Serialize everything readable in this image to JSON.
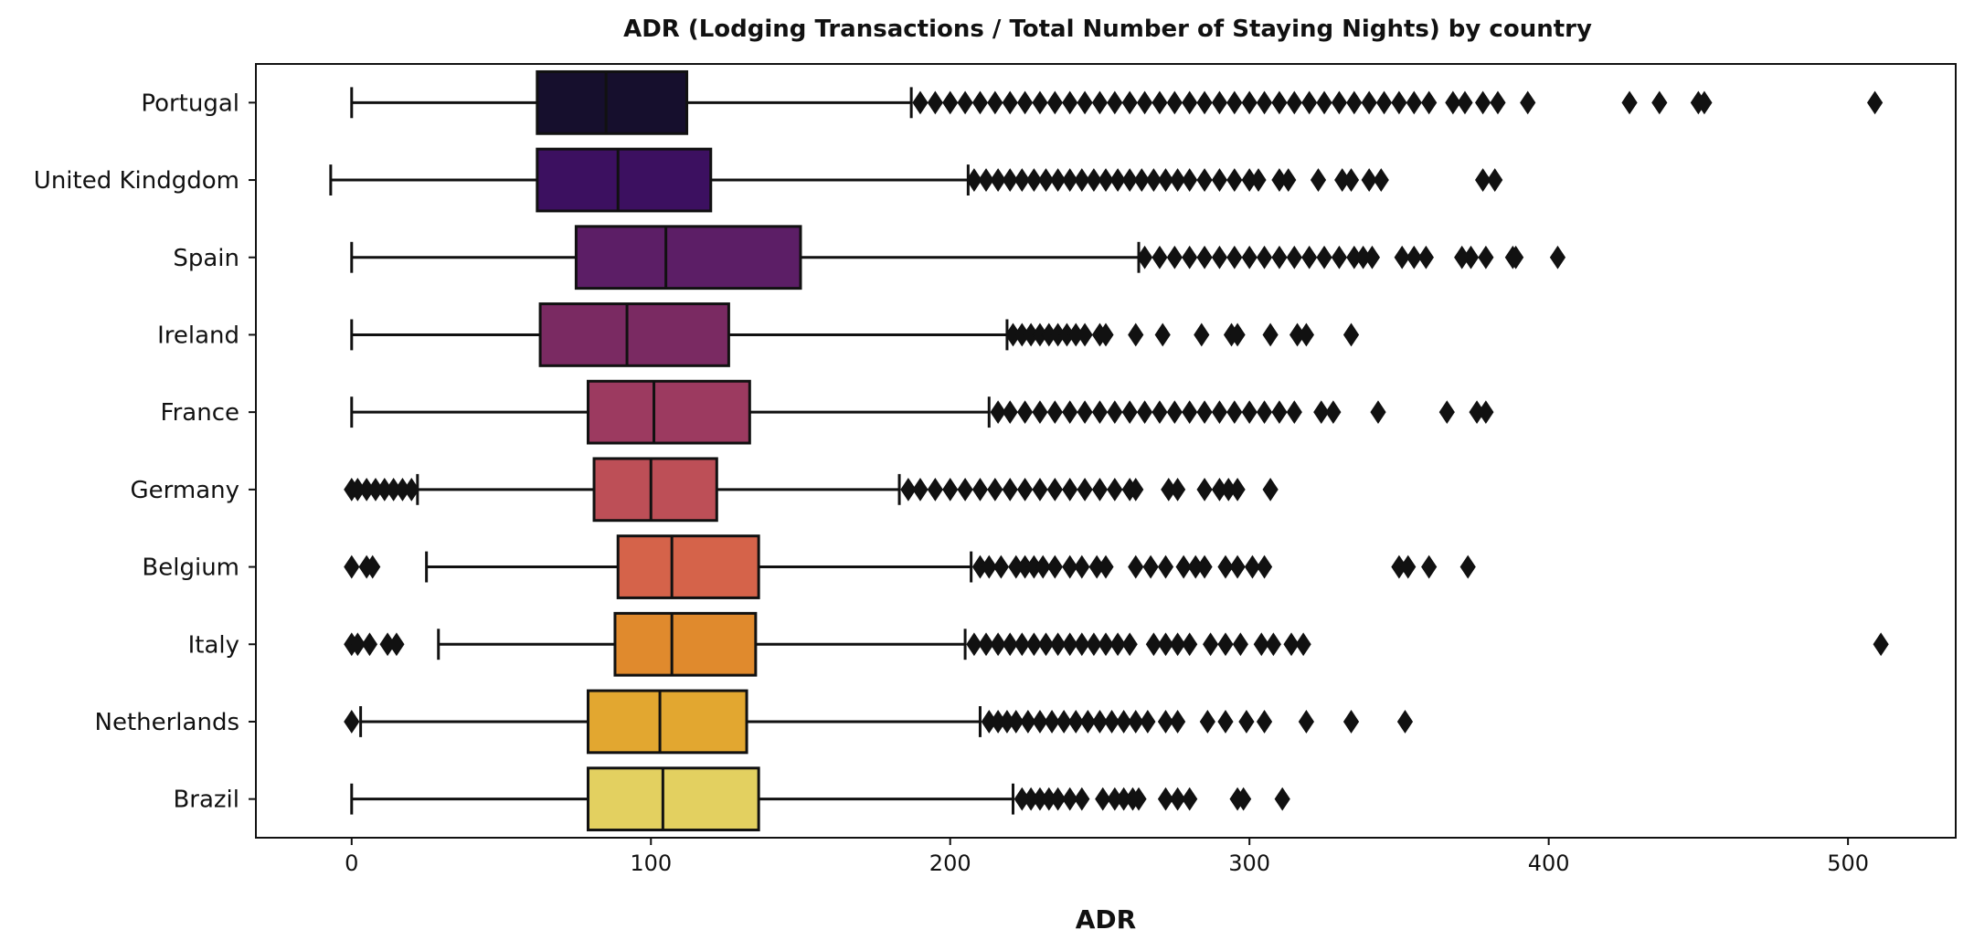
{
  "chart_data": {
    "type": "boxplot",
    "orientation": "horizontal",
    "title": "ADR (Lodging Transactions / Total Number of Staying Nights) by country",
    "xlabel": "ADR",
    "ylabel": "",
    "xlim": [
      -32,
      536
    ],
    "xticks": [
      0,
      100,
      200,
      300,
      400,
      500
    ],
    "grid": false,
    "series": [
      {
        "name": "Portugal",
        "color": "#160f2d",
        "whisker_low": 0,
        "q1": 62,
        "median": 85,
        "q3": 112,
        "whisker_high": 187,
        "outliers": [
          190,
          195,
          200,
          205,
          210,
          215,
          220,
          225,
          230,
          235,
          240,
          245,
          250,
          255,
          260,
          265,
          270,
          275,
          280,
          285,
          290,
          295,
          300,
          305,
          310,
          315,
          320,
          325,
          330,
          335,
          340,
          345,
          350,
          355,
          360,
          368,
          372,
          378,
          383,
          393,
          427,
          437,
          450,
          452,
          509
        ]
      },
      {
        "name": "United Kindgdom",
        "color": "#3c1060",
        "whisker_low": -7,
        "q1": 62,
        "median": 89,
        "q3": 120,
        "whisker_high": 206,
        "outliers": [
          208,
          212,
          216,
          220,
          224,
          228,
          232,
          236,
          240,
          244,
          248,
          252,
          256,
          260,
          264,
          268,
          272,
          276,
          280,
          285,
          290,
          295,
          300,
          303,
          310,
          313,
          323,
          331,
          334,
          340,
          344,
          378,
          382
        ]
      },
      {
        "name": "Spain",
        "color": "#5c1e66",
        "whisker_low": 0,
        "q1": 75,
        "median": 105,
        "q3": 150,
        "whisker_high": 263,
        "outliers": [
          265,
          270,
          275,
          280,
          285,
          290,
          295,
          300,
          305,
          310,
          315,
          320,
          325,
          330,
          335,
          338,
          341,
          351,
          355,
          359,
          371,
          374,
          379,
          388,
          389,
          403
        ]
      },
      {
        "name": "Ireland",
        "color": "#7a2a62",
        "whisker_low": 0,
        "q1": 63,
        "median": 92,
        "q3": 126,
        "whisker_high": 219,
        "outliers": [
          221,
          224,
          227,
          230,
          233,
          236,
          239,
          242,
          245,
          250,
          252,
          262,
          271,
          284,
          294,
          296,
          307,
          316,
          319,
          334
        ]
      },
      {
        "name": "France",
        "color": "#9c3a60",
        "whisker_low": 0,
        "q1": 79,
        "median": 101,
        "q3": 133,
        "whisker_high": 213,
        "outliers": [
          216,
          220,
          225,
          230,
          235,
          240,
          245,
          250,
          255,
          260,
          265,
          270,
          275,
          280,
          285,
          290,
          295,
          300,
          305,
          310,
          315,
          324,
          328,
          343,
          366,
          376,
          379
        ]
      },
      {
        "name": "Germany",
        "color": "#bd4f57",
        "whisker_low": 22,
        "q1": 81,
        "median": 100,
        "q3": 122,
        "whisker_high": 183,
        "outliers": [
          0,
          2,
          5,
          8,
          11,
          14,
          17,
          20,
          186,
          190,
          195,
          200,
          205,
          210,
          215,
          220,
          225,
          230,
          235,
          240,
          245,
          250,
          255,
          260,
          262,
          273,
          276,
          285,
          290,
          293,
          296,
          307
        ]
      },
      {
        "name": "Belgium",
        "color": "#d5634a",
        "whisker_low": 25,
        "q1": 89,
        "median": 107,
        "q3": 136,
        "whisker_high": 207,
        "outliers": [
          0,
          5,
          7,
          210,
          213,
          217,
          222,
          225,
          228,
          231,
          235,
          240,
          244,
          249,
          252,
          262,
          267,
          272,
          278,
          282,
          285,
          292,
          296,
          301,
          305,
          350,
          353,
          360,
          373
        ]
      },
      {
        "name": "Italy",
        "color": "#e08a2d",
        "whisker_low": 29,
        "q1": 88,
        "median": 107,
        "q3": 135,
        "whisker_high": 205,
        "outliers": [
          0,
          2,
          6,
          12,
          15,
          208,
          212,
          216,
          220,
          224,
          228,
          232,
          236,
          240,
          244,
          248,
          252,
          256,
          260,
          268,
          272,
          276,
          280,
          287,
          292,
          297,
          304,
          308,
          314,
          318,
          511
        ]
      },
      {
        "name": "Netherlands",
        "color": "#e2a730",
        "whisker_low": 3,
        "q1": 79,
        "median": 103,
        "q3": 132,
        "whisker_high": 210,
        "outliers": [
          0,
          213,
          216,
          219,
          222,
          226,
          230,
          234,
          238,
          242,
          246,
          250,
          254,
          258,
          262,
          266,
          272,
          276,
          286,
          292,
          299,
          305,
          319,
          334,
          352
        ]
      },
      {
        "name": "Brazil",
        "color": "#e3d060",
        "whisker_low": 0,
        "q1": 79,
        "median": 104,
        "q3": 136,
        "whisker_high": 221,
        "outliers": [
          224,
          227,
          230,
          233,
          236,
          240,
          244,
          251,
          255,
          258,
          261,
          263,
          272,
          276,
          280,
          296,
          298,
          311
        ]
      }
    ]
  }
}
